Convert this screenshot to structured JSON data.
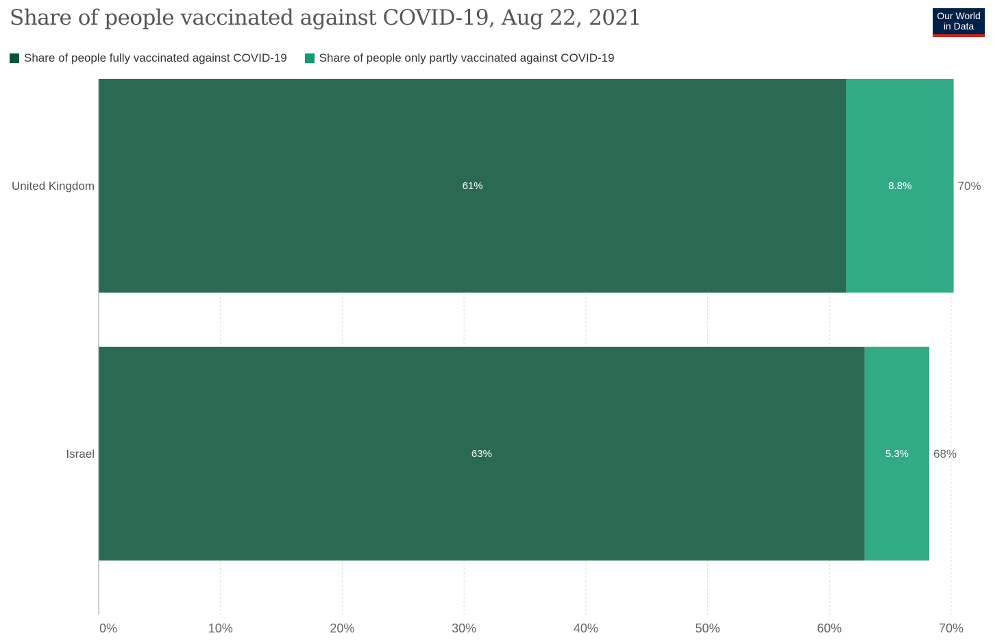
{
  "title": "Share of people vaccinated against COVID-19, Aug 22, 2021",
  "logo": {
    "line1": "Our World",
    "line2": "in Data"
  },
  "colors": {
    "fully_legend": "#00573a",
    "partly_legend": "#119b72",
    "fully_bar": "#2a6a53",
    "partly_bar": "#31ab85"
  },
  "chart_data": {
    "type": "bar",
    "orientation": "horizontal",
    "stacked": true,
    "categories": [
      "United Kingdom",
      "Israel"
    ],
    "series": [
      {
        "name": "Share of people fully vaccinated against COVID-19",
        "values": [
          61.4,
          62.9
        ],
        "labels": [
          "61%",
          "63%"
        ]
      },
      {
        "name": "Share of people only partly vaccinated against COVID-19",
        "values": [
          8.8,
          5.3
        ],
        "labels": [
          "8.8%",
          "5.3%"
        ]
      }
    ],
    "totals": [
      "70%",
      "68%"
    ],
    "xlim": [
      0,
      70
    ],
    "xticks": [
      "0%",
      "10%",
      "20%",
      "30%",
      "40%",
      "50%",
      "60%",
      "70%"
    ],
    "grid": "vertical dashed",
    "legend": "top-left"
  }
}
